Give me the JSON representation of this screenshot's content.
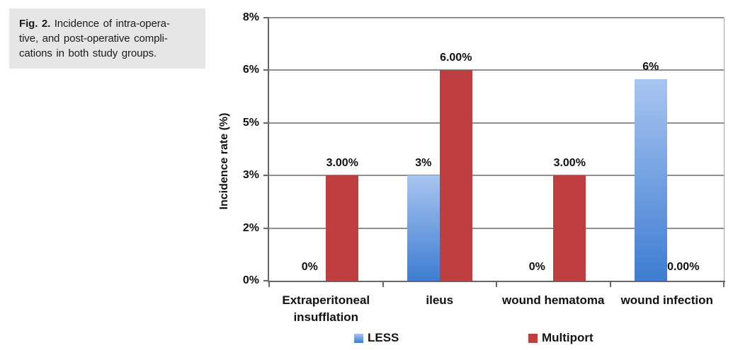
{
  "caption": {
    "fig_label": "Fig. 2.",
    "line1_rest": " Incidence of intra-opera-",
    "line2": "tive, and post-operative compli-",
    "line3": "cations in both study groups."
  },
  "chart_data": {
    "type": "bar",
    "title": "",
    "xlabel": "",
    "ylabel": "Incidence rate (%)",
    "grid": true,
    "legend_position": "bottom",
    "categories": [
      "Extraperitoneal insufflation",
      "ileus",
      "wound hematoma",
      "wound infection"
    ],
    "series": [
      {
        "name": "LESS",
        "values": [
          0,
          3,
          0,
          6
        ],
        "data_labels": [
          "0%",
          "3%",
          "0%",
          "6%"
        ],
        "bar_color_top": "#a8c5f1",
        "bar_color_bottom": "#3e7dd1"
      },
      {
        "name": "Multiport",
        "values": [
          3,
          6,
          3,
          0
        ],
        "data_labels": [
          "3.00%",
          "6.00%",
          "3.00%",
          "0.00%"
        ],
        "bar_color": "#bf3e40"
      }
    ],
    "draw_values": {
      "LESS": [
        0,
        3,
        0,
        5.75
      ],
      "Multiport": [
        3,
        6,
        3,
        0
      ]
    },
    "y_axis": {
      "min": 0,
      "max": 7.5,
      "tick_values": [
        0,
        1.5,
        3,
        4.5,
        6,
        7.5
      ],
      "tick_labels": [
        "0%",
        "2%",
        "3%",
        "5%",
        "6%",
        "8%"
      ]
    }
  }
}
